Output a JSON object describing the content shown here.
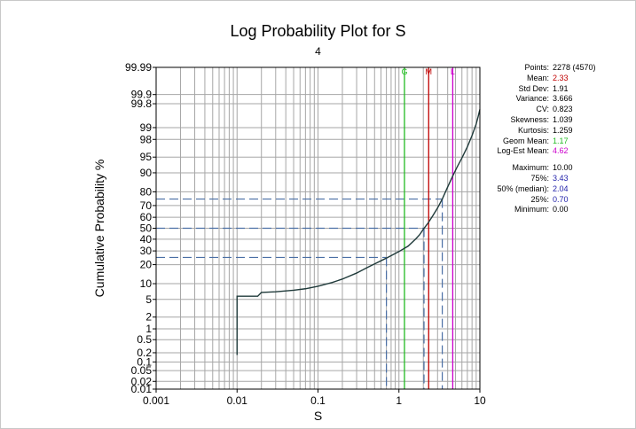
{
  "colors": {
    "grid": "#a6a6a6",
    "curve": "#1f3a3a",
    "percentile_lines": "#4a6fa5",
    "geom_mean": "#22bb22",
    "mean": "#c00000",
    "log_est_mean": "#cc00cc",
    "percentile_values": "#2222aa"
  },
  "chart_data": {
    "type": "line",
    "title": "Log Probability Plot for S",
    "subtitle": "4",
    "xlabel": "S",
    "ylabel": "Cumulative Probability %",
    "x_scale": "log",
    "y_scale": "probability",
    "xlim": [
      0.001,
      10
    ],
    "ylim": [
      0.01,
      99.99
    ],
    "x_ticks": [
      0.001,
      0.01,
      0.1,
      1,
      10
    ],
    "x_tick_labels": [
      "0.001",
      "0.01",
      "0.1",
      "1",
      "10"
    ],
    "y_ticks": [
      0.01,
      0.02,
      0.05,
      0.1,
      0.2,
      0.5,
      1,
      2,
      5,
      10,
      20,
      30,
      40,
      50,
      60,
      70,
      80,
      90,
      95,
      98,
      99,
      99.8,
      99.9,
      99.99
    ],
    "y_tick_labels": [
      "0.01",
      "0.02",
      "0.05",
      "0.1",
      "0.2",
      "0.5",
      "1",
      "2",
      "5",
      "10",
      "20",
      "30",
      "40",
      "50",
      "60",
      "70",
      "80",
      "90",
      "95",
      "98",
      "99",
      "99.8",
      "99.9",
      "99.99"
    ],
    "grid": true,
    "legend": "none",
    "series": [
      {
        "values": [
          [
            0.01,
            0.17
          ],
          [
            0.01,
            5.8
          ],
          [
            0.018,
            5.8
          ],
          [
            0.02,
            6.9
          ],
          [
            0.03,
            7.1
          ],
          [
            0.05,
            7.6
          ],
          [
            0.07,
            8.1
          ],
          [
            0.1,
            9.0
          ],
          [
            0.15,
            10.5
          ],
          [
            0.2,
            12.0
          ],
          [
            0.3,
            15.0
          ],
          [
            0.4,
            18.0
          ],
          [
            0.5,
            20.5
          ],
          [
            0.7,
            24.5
          ],
          [
            1.0,
            29.5
          ],
          [
            1.3,
            34.0
          ],
          [
            1.6,
            40.0
          ],
          [
            1.8,
            44.0
          ],
          [
            2.0,
            49.0
          ],
          [
            2.3,
            55.0
          ],
          [
            2.6,
            61.0
          ],
          [
            3.0,
            68.0
          ],
          [
            3.43,
            75.0
          ],
          [
            4.0,
            83.0
          ],
          [
            4.6,
            88.5
          ],
          [
            5.2,
            92.0
          ],
          [
            6.0,
            94.8
          ],
          [
            7.0,
            97.0
          ],
          [
            8.0,
            98.4
          ],
          [
            9.0,
            99.2
          ],
          [
            9.5,
            99.5
          ],
          [
            10.0,
            99.7
          ]
        ]
      }
    ],
    "reference_lines": [
      {
        "label": "G",
        "x": 1.17,
        "color": "#22bb22"
      },
      {
        "label": "M",
        "x": 2.33,
        "color": "#c00000"
      },
      {
        "label": "L",
        "x": 4.62,
        "color": "#cc00cc"
      }
    ],
    "percentile_markers": [
      {
        "p": 25,
        "x": 0.7
      },
      {
        "p": 50,
        "x": 2.04
      },
      {
        "p": 75,
        "x": 3.43
      }
    ]
  },
  "stats": {
    "rows": [
      {
        "label": "Points:",
        "value": "2278 (4570)",
        "color": "#000000"
      },
      {
        "label": "Mean:",
        "value": "2.33",
        "color": "#c00000"
      },
      {
        "label": "Std Dev:",
        "value": "1.91",
        "color": "#000000"
      },
      {
        "label": "Variance:",
        "value": "3.666",
        "color": "#000000"
      },
      {
        "label": "CV:",
        "value": "0.823",
        "color": "#000000"
      },
      {
        "label": "Skewness:",
        "value": "1.039",
        "color": "#000000"
      },
      {
        "label": "Kurtosis:",
        "value": "1.259",
        "color": "#000000"
      },
      {
        "label": "Geom Mean:",
        "value": "1.17",
        "color": "#22bb22"
      },
      {
        "label": "Log-Est Mean:",
        "value": "4.62",
        "color": "#cc00cc"
      }
    ],
    "rows2": [
      {
        "label": "Maximum:",
        "value": "10.00",
        "color": "#000000"
      },
      {
        "label": "75%:",
        "value": "3.43",
        "color": "#2222aa"
      },
      {
        "label": "50% (median):",
        "value": "2.04",
        "color": "#2222aa"
      },
      {
        "label": "25%:",
        "value": "0.70",
        "color": "#2222aa"
      },
      {
        "label": "Minimum:",
        "value": "0.00",
        "color": "#000000"
      }
    ]
  }
}
